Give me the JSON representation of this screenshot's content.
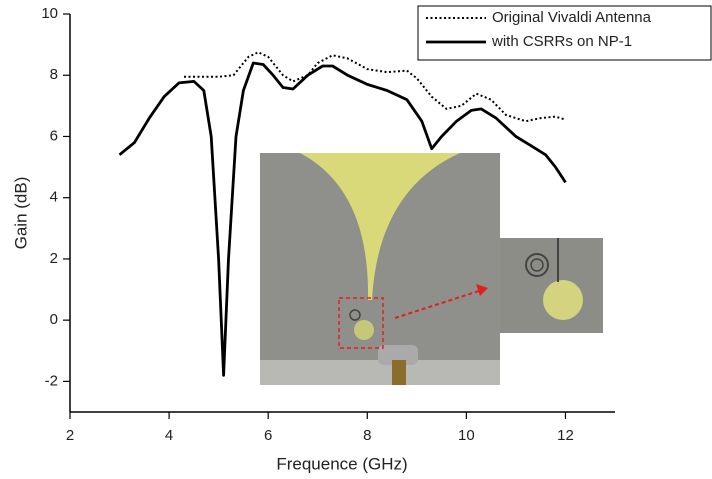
{
  "chart_data": {
    "type": "line",
    "xlabel": "Frequence (GHz)",
    "ylabel": "Gain (dB)",
    "xlim": [
      2,
      13
    ],
    "xticks": [
      2,
      4,
      6,
      8,
      10,
      12
    ],
    "ylim": [
      -3,
      10
    ],
    "yticks": [
      -2,
      0,
      2,
      4,
      6,
      8,
      10
    ],
    "legend": "top-right",
    "series": [
      {
        "name": "Original Vivaldi Antenna",
        "color": "#000000",
        "style": "dotted",
        "x": [
          4.3,
          5.0,
          5.3,
          5.6,
          5.8,
          6.0,
          6.3,
          6.5,
          6.8,
          7.0,
          7.3,
          7.6,
          8.0,
          8.4,
          8.8,
          9.0,
          9.3,
          9.6,
          9.9,
          10.2,
          10.5,
          10.8,
          11.2,
          11.5,
          11.8,
          12.0
        ],
        "values": [
          7.95,
          7.95,
          8.0,
          8.6,
          8.75,
          8.6,
          8.0,
          7.8,
          8.0,
          8.4,
          8.65,
          8.55,
          8.2,
          8.1,
          8.15,
          7.9,
          7.3,
          6.9,
          7.0,
          7.4,
          7.2,
          6.7,
          6.5,
          6.6,
          6.65,
          6.55
        ]
      },
      {
        "name": "with CSRRs on NP-1",
        "color": "#000000",
        "style": "solid",
        "x": [
          3.0,
          3.3,
          3.6,
          3.9,
          4.2,
          4.5,
          4.7,
          4.85,
          5.0,
          5.1,
          5.2,
          5.35,
          5.5,
          5.7,
          5.9,
          6.1,
          6.3,
          6.5,
          6.8,
          7.1,
          7.3,
          7.6,
          8.0,
          8.4,
          8.8,
          9.1,
          9.3,
          9.5,
          9.8,
          10.1,
          10.3,
          10.6,
          11.0,
          11.3,
          11.6,
          11.8,
          12.0
        ],
        "values": [
          5.4,
          5.8,
          6.6,
          7.3,
          7.75,
          7.8,
          7.5,
          6.0,
          2.0,
          -1.8,
          2.0,
          6.0,
          7.5,
          8.4,
          8.35,
          8.0,
          7.6,
          7.55,
          8.0,
          8.3,
          8.3,
          8.0,
          7.7,
          7.5,
          7.2,
          6.5,
          5.6,
          6.0,
          6.5,
          6.85,
          6.9,
          6.6,
          6.0,
          5.7,
          5.4,
          5.0,
          4.5
        ]
      }
    ]
  }
}
